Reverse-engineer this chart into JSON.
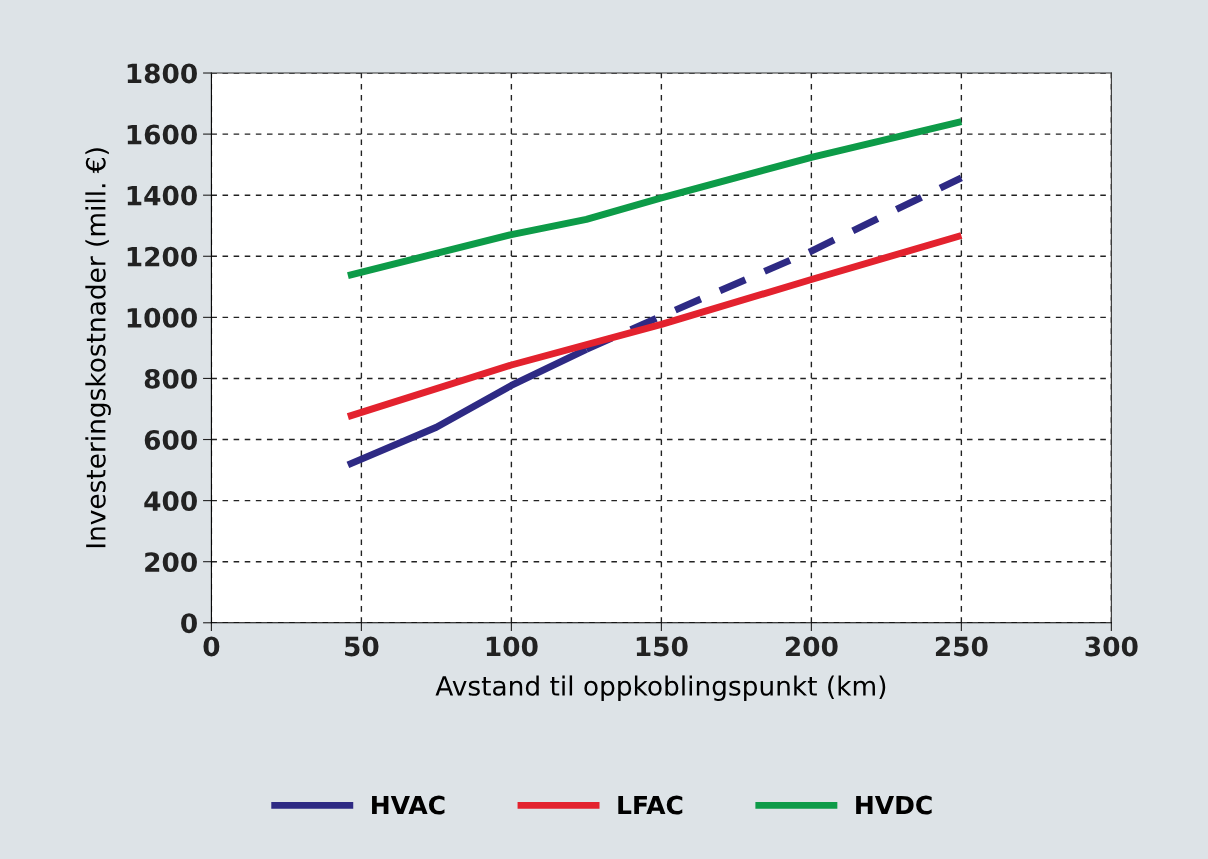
{
  "chart_data": {
    "type": "line",
    "xlabel": "Avstand til oppkoblingspunkt (km)",
    "ylabel": "Investeringskostnader (mill. €)",
    "xlim": [
      0,
      300
    ],
    "xticks": [
      0,
      50,
      100,
      150,
      200,
      250,
      300
    ],
    "ylim": [
      0,
      1800
    ],
    "yticks": [
      0,
      200,
      400,
      600,
      800,
      1000,
      1200,
      1400,
      1600,
      1800
    ],
    "grid": true,
    "legend": "bottom",
    "marker": "none",
    "series": [
      {
        "name": "HVAC",
        "color": "#2e2a84",
        "line_style": "solid",
        "x": [
          45.5,
          75,
          100,
          125
        ],
        "values": [
          517,
          640,
          777,
          895
        ]
      },
      {
        "color": "#2e2a84",
        "line_style": "dashed",
        "x": [
          125,
          150,
          200,
          250
        ],
        "values": [
          895,
          1004,
          1217,
          1457
        ]
      },
      {
        "name": "LFAC",
        "color": "#e3222e",
        "line_style": "solid",
        "x": [
          45.5,
          100,
          150,
          200,
          250
        ],
        "values": [
          675,
          844,
          977,
          1124,
          1268
        ]
      },
      {
        "name": "HVDC",
        "color": "#0d9b48",
        "line_style": "solid",
        "x": [
          45.5,
          100,
          125,
          150,
          200,
          250
        ],
        "values": [
          1137,
          1271,
          1321,
          1391,
          1524,
          1641
        ]
      }
    ]
  }
}
